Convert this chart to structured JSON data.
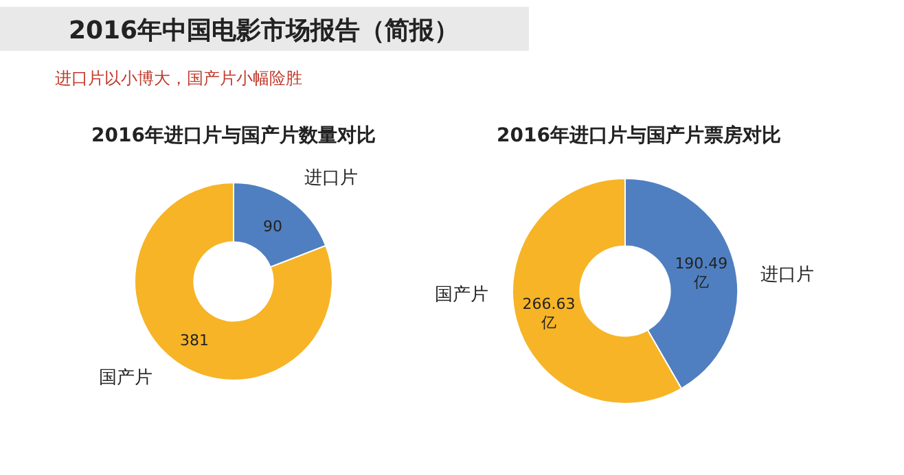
{
  "chart_data": [
    {
      "type": "other",
      "title": "2016年中国电影市场报告（简报）",
      "subtitle": "进口片以小博大，国产片小幅险胜"
    },
    {
      "type": "donut",
      "title": "2016年进口片与国产片数量对比",
      "categories": [
        "进口片",
        "国产片"
      ],
      "values": [
        90,
        381
      ],
      "colors": [
        "#4f7fc0",
        "#f6b426"
      ],
      "data_labels": true
    },
    {
      "type": "donut",
      "title": "2016年进口片与国产片票房对比",
      "categories": [
        "进口片",
        "国产片"
      ],
      "values": [
        190.49,
        266.63
      ],
      "colors": [
        "#4f7fc0",
        "#f6b426"
      ],
      "value_labels": [
        "190.49\n亿",
        "266.63\n亿"
      ]
    }
  ]
}
